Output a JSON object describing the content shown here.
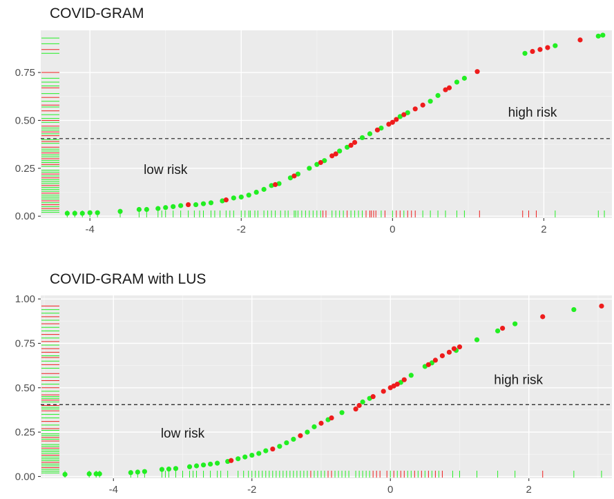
{
  "chart_data": [
    {
      "type": "scatter",
      "title": "COVID-GRAM",
      "xlabel": "",
      "ylabel": "",
      "xlim": [
        -4.65,
        2.9
      ],
      "ylim": [
        -0.01,
        0.97
      ],
      "x_ticks": [
        -4,
        -2,
        0,
        2
      ],
      "y_ticks": [
        0.0,
        0.25,
        0.5,
        0.75
      ],
      "y_tick_labels": [
        "0.00",
        "0.25",
        "0.50",
        "0.75"
      ],
      "threshold": 0.405,
      "annotations": [
        {
          "text": "low risk",
          "x": -3.0,
          "y": 0.22
        },
        {
          "text": "high risk",
          "x": 1.85,
          "y": 0.52
        }
      ],
      "colors": {
        "event": "#ee1c1c",
        "no_event": "#22ee22"
      },
      "series": [
        {
          "name": "",
          "color": "#22ee22",
          "points": [
            [
              -4.3,
              0.015
            ],
            [
              -4.2,
              0.015
            ],
            [
              -4.1,
              0.015
            ],
            [
              -4.0,
              0.018
            ],
            [
              -3.9,
              0.018
            ],
            [
              -3.6,
              0.025
            ],
            [
              -3.35,
              0.035
            ],
            [
              -3.25,
              0.035
            ],
            [
              -3.1,
              0.04
            ],
            [
              -3.0,
              0.045
            ],
            [
              -2.9,
              0.05
            ],
            [
              -2.8,
              0.055
            ],
            [
              -2.6,
              0.06
            ],
            [
              -2.5,
              0.065
            ],
            [
              -2.4,
              0.07
            ],
            [
              -2.25,
              0.08
            ],
            [
              -2.1,
              0.095
            ],
            [
              -2.0,
              0.1
            ],
            [
              -1.9,
              0.11
            ],
            [
              -1.8,
              0.125
            ],
            [
              -1.7,
              0.14
            ],
            [
              -1.6,
              0.16
            ],
            [
              -1.5,
              0.17
            ],
            [
              -1.35,
              0.2
            ],
            [
              -1.25,
              0.22
            ],
            [
              -1.1,
              0.25
            ],
            [
              -1.0,
              0.27
            ],
            [
              -0.9,
              0.29
            ],
            [
              -0.7,
              0.34
            ],
            [
              -0.6,
              0.36
            ],
            [
              -0.4,
              0.41
            ],
            [
              -0.3,
              0.43
            ],
            [
              -0.15,
              0.46
            ],
            [
              0.1,
              0.52
            ],
            [
              0.2,
              0.54
            ],
            [
              0.5,
              0.6
            ],
            [
              0.6,
              0.63
            ],
            [
              0.85,
              0.7
            ],
            [
              0.95,
              0.72
            ],
            [
              1.75,
              0.85
            ],
            [
              2.15,
              0.89
            ],
            [
              2.72,
              0.94
            ],
            [
              2.78,
              0.945
            ]
          ]
        },
        {
          "name": "",
          "color": "#ee1c1c",
          "points": [
            [
              -2.7,
              0.06
            ],
            [
              -2.2,
              0.085
            ],
            [
              -1.55,
              0.165
            ],
            [
              -1.3,
              0.21
            ],
            [
              -0.95,
              0.28
            ],
            [
              -0.8,
              0.315
            ],
            [
              -0.75,
              0.325
            ],
            [
              -0.55,
              0.37
            ],
            [
              -0.5,
              0.385
            ],
            [
              -0.2,
              0.45
            ],
            [
              -0.05,
              0.48
            ],
            [
              0.0,
              0.49
            ],
            [
              0.05,
              0.505
            ],
            [
              0.15,
              0.53
            ],
            [
              0.3,
              0.56
            ],
            [
              0.4,
              0.58
            ],
            [
              0.7,
              0.66
            ],
            [
              0.75,
              0.67
            ],
            [
              1.12,
              0.755
            ],
            [
              1.85,
              0.86
            ],
            [
              1.95,
              0.87
            ],
            [
              2.05,
              0.88
            ],
            [
              2.48,
              0.92
            ]
          ]
        }
      ],
      "rug_x_event": [
        -0.92,
        -0.88,
        -0.6,
        -0.35,
        -0.3,
        -0.28,
        -0.25,
        -0.22,
        -0.1,
        0.05,
        0.1,
        0.2,
        0.25,
        0.3,
        1.15,
        1.72,
        1.8,
        1.9
      ],
      "rug_x_no_event": [
        -4.3,
        -4.2,
        -4.1,
        -4.0,
        -3.9,
        -3.6,
        -3.35,
        -3.25,
        -3.1,
        -3.05,
        -3.0,
        -2.9,
        -2.8,
        -2.7,
        -2.62,
        -2.55,
        -2.5,
        -2.4,
        -2.35,
        -2.28,
        -2.2,
        -2.15,
        -2.1,
        -2.0,
        -1.95,
        -1.9,
        -1.88,
        -1.82,
        -1.78,
        -1.7,
        -1.65,
        -1.6,
        -1.55,
        -1.48,
        -1.42,
        -1.38,
        -1.3,
        -1.28,
        -1.25,
        -1.2,
        -1.15,
        -1.1,
        -1.05,
        -1.0,
        -0.95,
        -0.8,
        -0.75,
        -0.7,
        -0.65,
        -0.55,
        -0.5,
        -0.45,
        -0.4,
        -0.15,
        0.0,
        0.15,
        0.4,
        0.5,
        0.6,
        0.7,
        0.85,
        0.95,
        2.15,
        2.72,
        2.8
      ],
      "rug_y_event": [
        0.87,
        0.75,
        0.67,
        0.62,
        0.58,
        0.55,
        0.5,
        0.47,
        0.44,
        0.42,
        0.39,
        0.36,
        0.33,
        0.3,
        0.27,
        0.22,
        0.2,
        0.16,
        0.12,
        0.08,
        0.06,
        0.04
      ],
      "rug_y_no_event": [
        0.93,
        0.9,
        0.85,
        0.72,
        0.7,
        0.68,
        0.64,
        0.6,
        0.57,
        0.53,
        0.51,
        0.49,
        0.46,
        0.45,
        0.43,
        0.4,
        0.38,
        0.35,
        0.34,
        0.32,
        0.31,
        0.29,
        0.28,
        0.26,
        0.24,
        0.23,
        0.21,
        0.19,
        0.18,
        0.17,
        0.15,
        0.14,
        0.13,
        0.11,
        0.1,
        0.09,
        0.07,
        0.05,
        0.03,
        0.02
      ]
    },
    {
      "type": "scatter",
      "title": "COVID-GRAM with LUS",
      "xlabel": "",
      "ylabel": "",
      "xlim": [
        -5.05,
        3.2
      ],
      "ylim": [
        -0.01,
        1.02
      ],
      "x_ticks": [
        -4,
        -2,
        0,
        2
      ],
      "y_ticks": [
        0.0,
        0.25,
        0.5,
        0.75,
        1.0
      ],
      "y_tick_labels": [
        "0.00",
        "0.25",
        "0.50",
        "0.75",
        "1.00"
      ],
      "threshold": 0.405,
      "annotations": [
        {
          "text": "low risk",
          "x": -3.0,
          "y": 0.22
        },
        {
          "text": "high risk",
          "x": 1.85,
          "y": 0.52
        }
      ],
      "colors": {
        "event": "#ee1c1c",
        "no_event": "#22ee22"
      },
      "series": [
        {
          "name": "",
          "color": "#22ee22",
          "points": [
            [
              -4.7,
              0.012
            ],
            [
              -4.35,
              0.015
            ],
            [
              -4.25,
              0.015
            ],
            [
              -4.2,
              0.015
            ],
            [
              -3.75,
              0.022
            ],
            [
              -3.65,
              0.025
            ],
            [
              -3.55,
              0.028
            ],
            [
              -3.3,
              0.04
            ],
            [
              -3.2,
              0.042
            ],
            [
              -3.1,
              0.045
            ],
            [
              -2.9,
              0.055
            ],
            [
              -2.8,
              0.06
            ],
            [
              -2.7,
              0.065
            ],
            [
              -2.6,
              0.07
            ],
            [
              -2.5,
              0.075
            ],
            [
              -2.35,
              0.085
            ],
            [
              -2.2,
              0.1
            ],
            [
              -2.1,
              0.11
            ],
            [
              -2.0,
              0.12
            ],
            [
              -1.9,
              0.13
            ],
            [
              -1.8,
              0.145
            ],
            [
              -1.6,
              0.17
            ],
            [
              -1.5,
              0.19
            ],
            [
              -1.4,
              0.21
            ],
            [
              -1.2,
              0.25
            ],
            [
              -1.1,
              0.28
            ],
            [
              -0.9,
              0.32
            ],
            [
              -0.7,
              0.36
            ],
            [
              -0.4,
              0.42
            ],
            [
              -0.3,
              0.44
            ],
            [
              0.15,
              0.53
            ],
            [
              0.3,
              0.57
            ],
            [
              0.5,
              0.62
            ],
            [
              0.6,
              0.64
            ],
            [
              0.95,
              0.71
            ],
            [
              1.25,
              0.77
            ],
            [
              1.55,
              0.82
            ],
            [
              1.8,
              0.86
            ],
            [
              2.65,
              0.94
            ]
          ]
        },
        {
          "name": "",
          "color": "#ee1c1c",
          "points": [
            [
              -2.3,
              0.09
            ],
            [
              -1.7,
              0.155
            ],
            [
              -1.3,
              0.23
            ],
            [
              -1.0,
              0.3
            ],
            [
              -0.85,
              0.33
            ],
            [
              -0.5,
              0.38
            ],
            [
              -0.45,
              0.4
            ],
            [
              -0.25,
              0.45
            ],
            [
              -0.1,
              0.48
            ],
            [
              0.0,
              0.5
            ],
            [
              0.05,
              0.51
            ],
            [
              0.1,
              0.52
            ],
            [
              0.2,
              0.545
            ],
            [
              0.55,
              0.63
            ],
            [
              0.65,
              0.655
            ],
            [
              0.75,
              0.68
            ],
            [
              0.85,
              0.7
            ],
            [
              0.92,
              0.72
            ],
            [
              1.0,
              0.73
            ],
            [
              1.62,
              0.835
            ],
            [
              2.2,
              0.9
            ],
            [
              3.05,
              0.96
            ]
          ]
        }
      ],
      "rug_x_event": [
        -1.15,
        -0.9,
        -0.85,
        -0.25,
        -0.2,
        -0.15,
        -0.05,
        0.05,
        0.15,
        0.2,
        0.35,
        0.45,
        0.55,
        0.65,
        0.75,
        2.2
      ],
      "rug_x_no_event": [
        -4.7,
        -4.35,
        -4.25,
        -4.2,
        -3.75,
        -3.65,
        -3.55,
        -3.3,
        -3.25,
        -3.2,
        -3.1,
        -3.0,
        -2.9,
        -2.85,
        -2.8,
        -2.7,
        -2.6,
        -2.5,
        -2.45,
        -2.35,
        -2.2,
        -2.12,
        -2.05,
        -2.0,
        -1.95,
        -1.9,
        -1.85,
        -1.8,
        -1.75,
        -1.7,
        -1.65,
        -1.6,
        -1.55,
        -1.5,
        -1.45,
        -1.4,
        -1.35,
        -1.3,
        -1.25,
        -1.2,
        -1.1,
        -1.05,
        -1.0,
        -0.95,
        -0.8,
        -0.75,
        -0.7,
        -0.65,
        -0.6,
        -0.5,
        -0.45,
        -0.4,
        -0.35,
        -0.3,
        0.0,
        0.1,
        0.25,
        0.3,
        0.4,
        0.5,
        0.6,
        0.7,
        0.9,
        1.0,
        1.25,
        1.55,
        1.8,
        2.65,
        3.05
      ],
      "rug_y_event": [
        0.96,
        0.9,
        0.86,
        0.8,
        0.76,
        0.72,
        0.7,
        0.67,
        0.63,
        0.58,
        0.54,
        0.5,
        0.46,
        0.43,
        0.4,
        0.37,
        0.31,
        0.27,
        0.22,
        0.2,
        0.16,
        0.12,
        0.08,
        0.05
      ],
      "rug_y_no_event": [
        0.94,
        0.92,
        0.88,
        0.84,
        0.82,
        0.78,
        0.74,
        0.68,
        0.65,
        0.61,
        0.56,
        0.52,
        0.48,
        0.45,
        0.44,
        0.42,
        0.39,
        0.38,
        0.35,
        0.33,
        0.29,
        0.26,
        0.24,
        0.23,
        0.21,
        0.18,
        0.17,
        0.15,
        0.14,
        0.13,
        0.11,
        0.1,
        0.09,
        0.07,
        0.06,
        0.04,
        0.03,
        0.02
      ]
    }
  ]
}
